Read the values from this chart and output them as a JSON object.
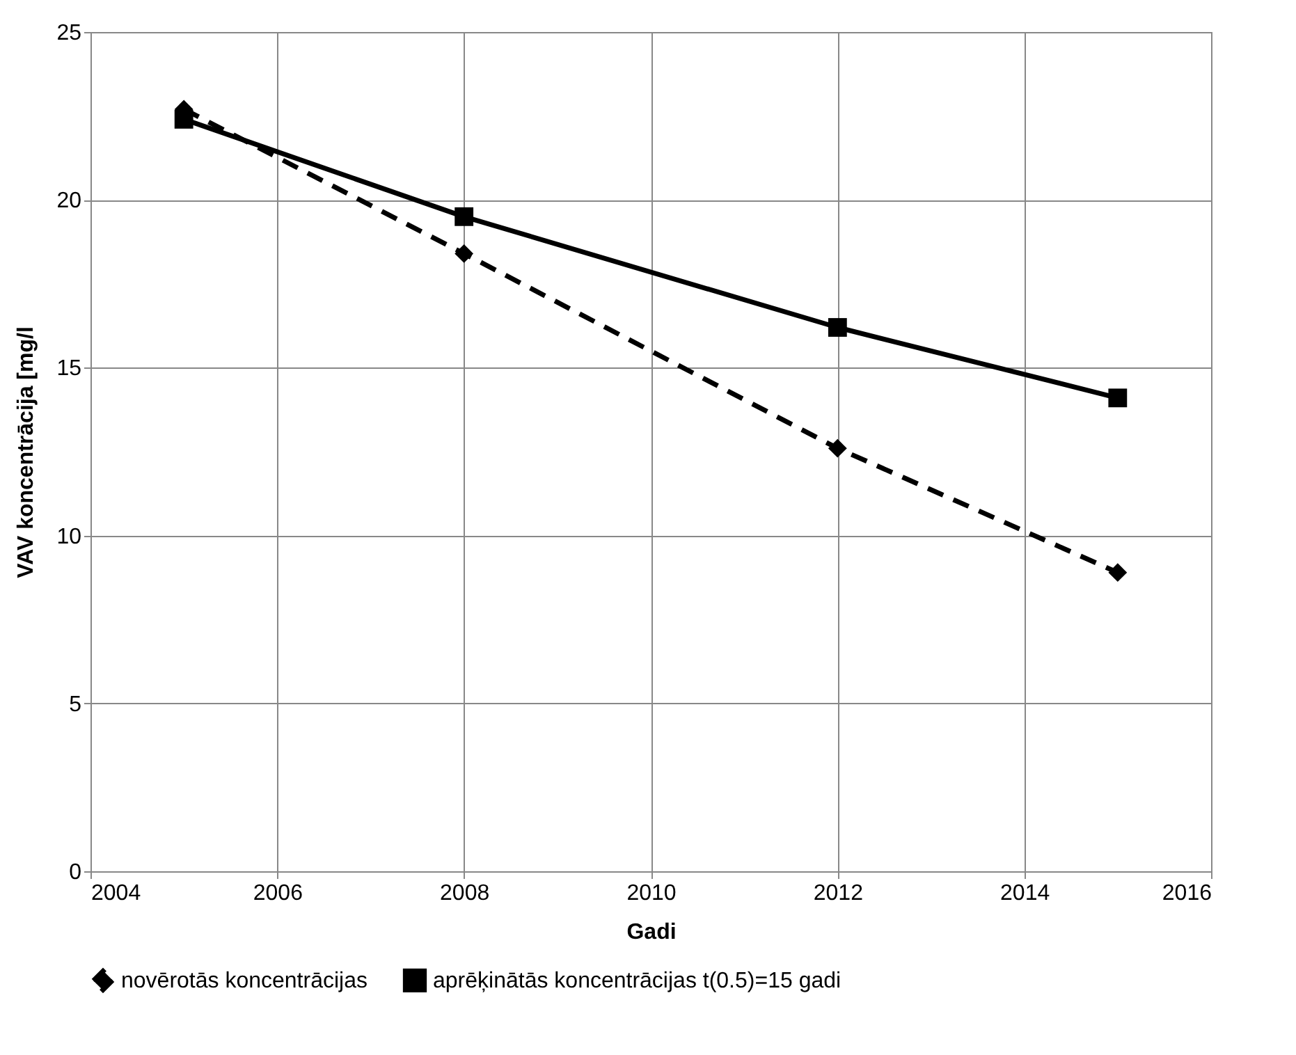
{
  "chart_data": {
    "type": "line",
    "xlabel": "Gadi",
    "ylabel": "VAV koncentrācija [mg/l",
    "x": [
      2005,
      2008,
      2012,
      2015
    ],
    "series": [
      {
        "name": "novērotās koncentrācijas",
        "color": "#000000",
        "values": [
          22.7,
          18.4,
          12.6,
          8.9
        ],
        "line_style": "dashed",
        "marker": "diamond"
      },
      {
        "name": "aprēķinātās koncentrācijas t(0.5)=15 gadi",
        "color": "#000000",
        "values": [
          22.4,
          19.5,
          16.2,
          14.1
        ],
        "line_style": "solid",
        "marker": "square"
      }
    ],
    "xlim": [
      2004,
      2016
    ],
    "xticks": [
      2004,
      2006,
      2008,
      2010,
      2012,
      2014,
      2016
    ],
    "ylim": [
      0,
      25
    ],
    "yticks": [
      0,
      5,
      10,
      15,
      20,
      25
    ],
    "grid": true,
    "legend": "bottom"
  }
}
